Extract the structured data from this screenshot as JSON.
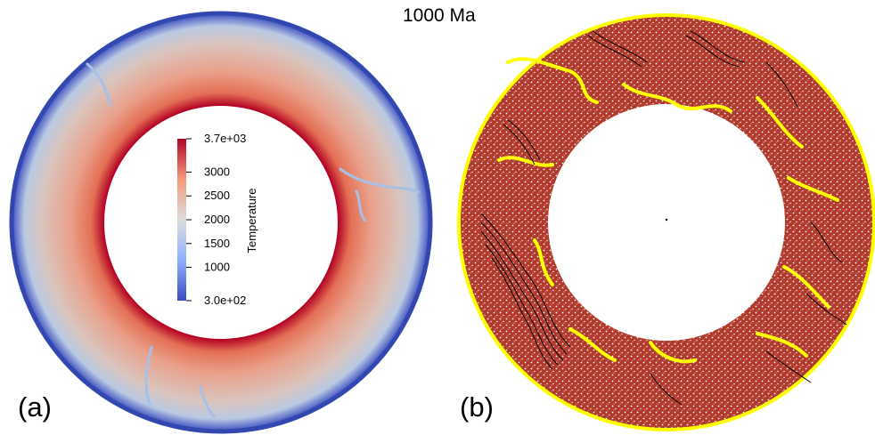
{
  "title": "1000 Ma",
  "panel_a": {
    "label": "(a)",
    "colorbar": {
      "title": "Temperature",
      "max_label": "3.7e+03",
      "min_label": "3.0e+02",
      "ticks": [
        "3000",
        "2500",
        "2000",
        "1500",
        "1000"
      ],
      "min_value": 300,
      "max_value": 3700,
      "tick_values": [
        3000,
        2500,
        2000,
        1500,
        1000
      ],
      "colors": [
        "#3b4cc0",
        "#8db0fe",
        "#dddddd",
        "#f49a7b",
        "#b40426"
      ]
    }
  },
  "panel_b": {
    "label": "(b)",
    "colors": {
      "mantle": "#b03a2e",
      "crust": "#ffff00",
      "tracer": "#000000"
    }
  }
}
